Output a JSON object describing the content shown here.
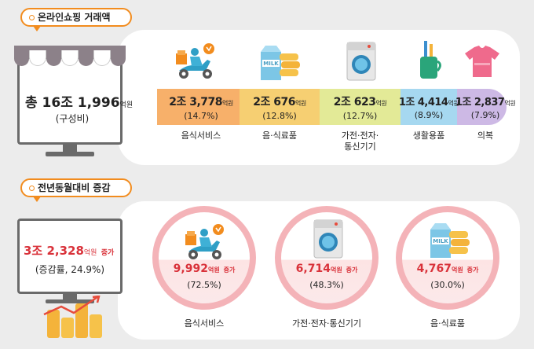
{
  "top": {
    "tag": "온라인쇼핑 거래액",
    "total": {
      "value": "총 16조 1,996",
      "unit": "억원",
      "sub": "(구성비)"
    },
    "segments": [
      {
        "value": "2조 3,778",
        "unit": "억원",
        "pct": "(14.7%)",
        "label": "음식서비스",
        "color": "#f7b06a",
        "icon": "delivery-scooter-icon"
      },
      {
        "value": "2조 676",
        "unit": "억원",
        "pct": "(12.8%)",
        "label": "음·식료품",
        "color": "#f6cf72",
        "icon": "milk-carton-icon"
      },
      {
        "value": "2조 623",
        "unit": "억원",
        "pct": "(12.7%)",
        "label": "가전·전자·통신기기",
        "label_l1": "가전·전자·",
        "label_l2": "통신기기",
        "color": "#e3ea97",
        "icon": "washing-machine-icon"
      },
      {
        "value": "1조 4,414",
        "unit": "억원",
        "pct": "(8.9%)",
        "label": "생활용품",
        "color": "#a6d8f0",
        "icon": "toothbrush-cup-icon"
      },
      {
        "value": "1조 2,837",
        "unit": "억원",
        "pct": "(7.9%)",
        "label": "의복",
        "color": "#cdb9e5",
        "icon": "tshirt-icon"
      }
    ]
  },
  "bottom": {
    "tag": "전년동월대비 증감",
    "total": {
      "value": "3조 2,328",
      "unit": "억원",
      "suffix": "증가",
      "sub": "(증감률, 24.9%)"
    },
    "circles": [
      {
        "value": "9,992",
        "unit": "억원",
        "suffix": "증가",
        "pct": "(72.5%)",
        "label": "음식서비스",
        "icon": "delivery-scooter-icon"
      },
      {
        "value": "6,714",
        "unit": "억원",
        "suffix": "증가",
        "pct": "(48.3%)",
        "label": "가전·전자·통신기기",
        "icon": "washing-machine-icon"
      },
      {
        "value": "4,767",
        "unit": "억원",
        "suffix": "증가",
        "pct": "(30.0%)",
        "label": "음·식료품",
        "icon": "milk-carton-icon"
      }
    ]
  },
  "colors": {
    "accent_orange": "#f28c1e",
    "accent_red": "#d9323a",
    "circle_pink": "#f4b3b8",
    "monitor_gray": "#6a6a6a"
  }
}
